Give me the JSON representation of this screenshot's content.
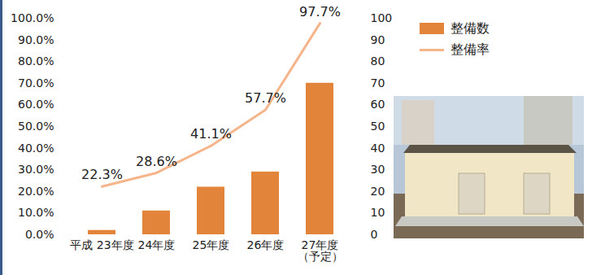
{
  "chart_data": {
    "type": "bar",
    "categories": [
      "平成 23年度",
      "24年度",
      "25年度",
      "26年度",
      "27年度\n（予定）"
    ],
    "series": [
      {
        "name": "整備数",
        "type": "bar",
        "color": "#e2843a",
        "axis": "y2",
        "values": [
          2,
          11,
          22,
          29,
          70
        ]
      },
      {
        "name": "整備率",
        "type": "line",
        "color": "#f6b48a",
        "data_labels": true,
        "values": [
          22.3,
          28.6,
          41.1,
          57.7,
          97.7
        ],
        "value_labels": [
          "22.3%",
          "28.6%",
          "41.1%",
          "57.7%",
          "97.7%"
        ]
      }
    ],
    "ylim": [
      0,
      100
    ],
    "yticks": [
      {
        "value": 0,
        "label": "0.0%"
      },
      {
        "value": 10,
        "label": "10.0%"
      },
      {
        "value": 20,
        "label": "20.0%"
      },
      {
        "value": 30,
        "label": "30.0%"
      },
      {
        "value": 40,
        "label": "40.0%"
      },
      {
        "value": 50,
        "label": "50.0%"
      },
      {
        "value": 60,
        "label": "60.0%"
      },
      {
        "value": 70,
        "label": "70.0%"
      },
      {
        "value": 80,
        "label": "80.0%"
      },
      {
        "value": 90,
        "label": "90.0%"
      },
      {
        "value": 100,
        "label": "100.0%"
      }
    ],
    "y2lim": [
      0,
      100
    ],
    "y2ticks": [
      0,
      10,
      20,
      30,
      40,
      50,
      60,
      70,
      80,
      90,
      100
    ],
    "legend": "right",
    "grid": false
  }
}
